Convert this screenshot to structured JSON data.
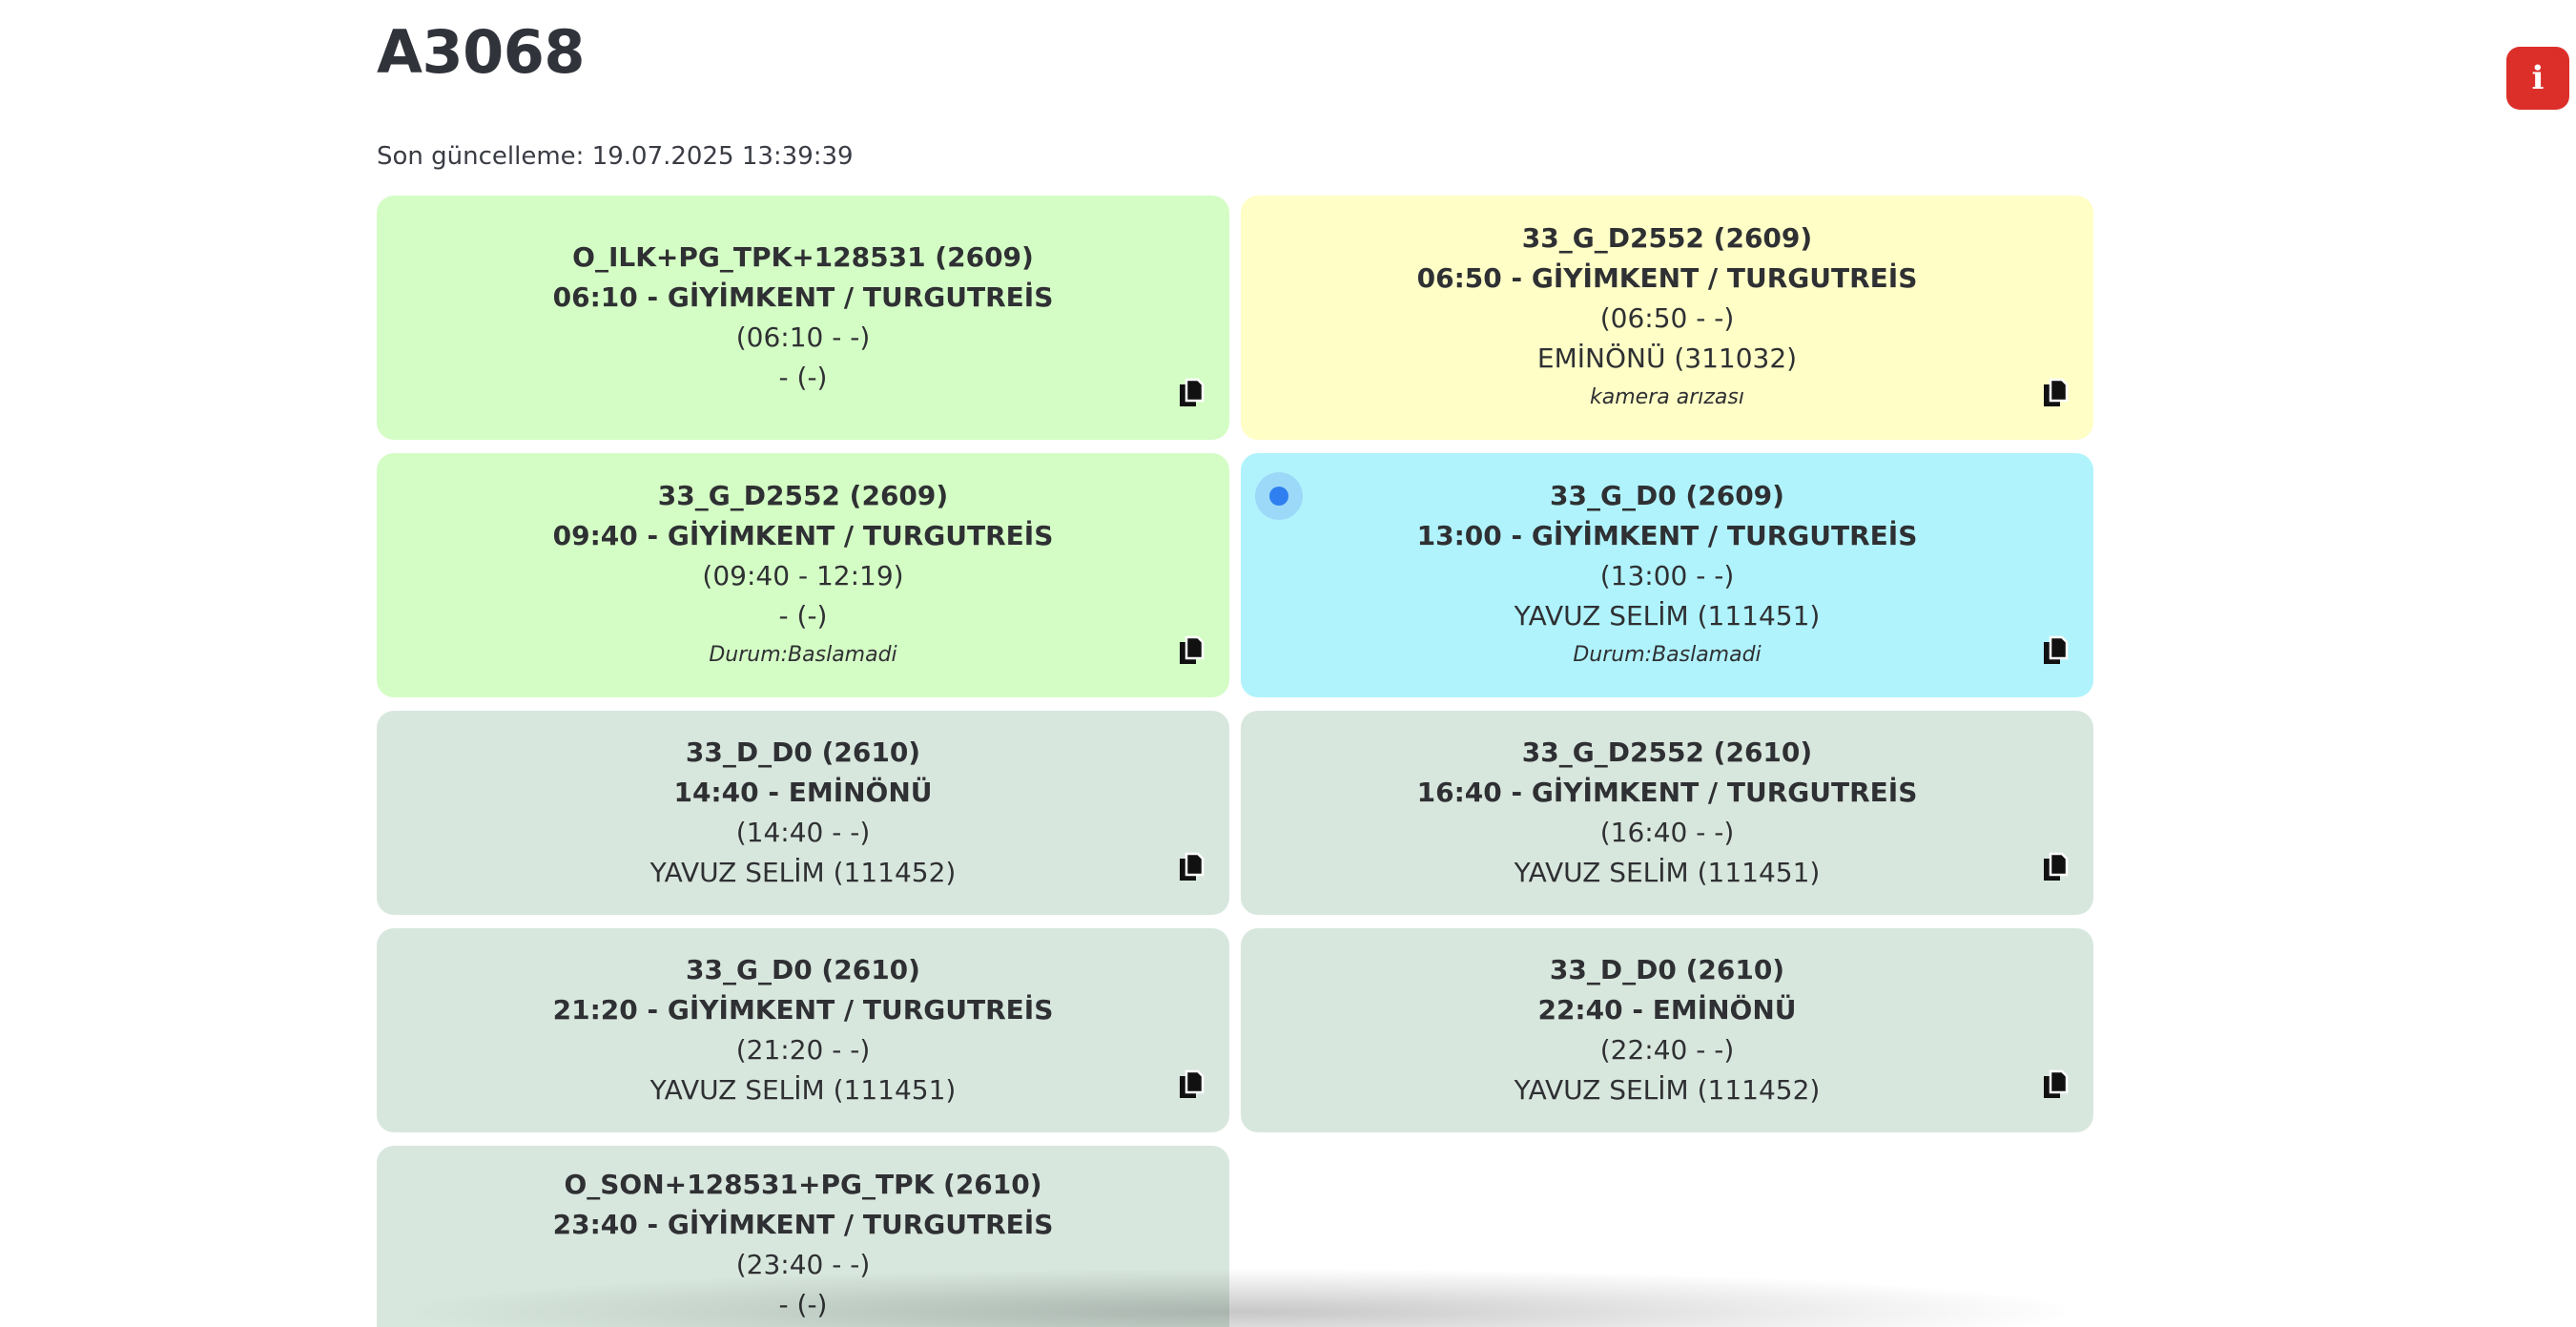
{
  "header": {
    "title": "A3068",
    "last_update": "Son güncelleme: 19.07.2025 13:39:39",
    "info_label": "i"
  },
  "cards": [
    {
      "color": "green",
      "route": "O_ILK+PG_TPK+128531 (2609)",
      "departure": "06:10 - GİYİMKENT / TURGUTREİS",
      "times": "(06:10 - -)",
      "driver": "- (-)",
      "note": ""
    },
    {
      "color": "yellow",
      "route": "33_G_D2552 (2609)",
      "departure": "06:50 - GİYİMKENT / TURGUTREİS",
      "times": "(06:50 - -)",
      "driver": "EMİNÖNÜ (311032)",
      "note": "kamera arızası"
    },
    {
      "color": "green",
      "route": "33_G_D2552 (2609)",
      "departure": "09:40 - GİYİMKENT / TURGUTREİS",
      "times": "(09:40 - 12:19)",
      "driver": "- (-)",
      "note": "Durum:Baslamadi"
    },
    {
      "color": "cyan",
      "route": "33_G_D0 (2609)",
      "departure": "13:00 - GİYİMKENT / TURGUTREİS",
      "times": "(13:00 - -)",
      "driver": "YAVUZ SELİM (111451)",
      "note": "Durum:Baslamadi"
    },
    {
      "color": "gray",
      "route": "33_D_D0 (2610)",
      "departure": "14:40 - EMİNÖNÜ",
      "times": "(14:40 - -)",
      "driver": "YAVUZ SELİM (111452)",
      "note": ""
    },
    {
      "color": "gray",
      "route": "33_G_D2552 (2610)",
      "departure": "16:40 - GİYİMKENT / TURGUTREİS",
      "times": "(16:40 - -)",
      "driver": "YAVUZ SELİM (111451)",
      "note": ""
    },
    {
      "color": "gray",
      "route": "33_G_D0 (2610)",
      "departure": "21:20 - GİYİMKENT / TURGUTREİS",
      "times": "(21:20 - -)",
      "driver": "YAVUZ SELİM (111451)",
      "note": ""
    },
    {
      "color": "gray",
      "route": "33_D_D0 (2610)",
      "departure": "22:40 - EMİNÖNÜ",
      "times": "(22:40 - -)",
      "driver": "YAVUZ SELİM (111452)",
      "note": ""
    },
    {
      "color": "gray",
      "route": "O_SON+128531+PG_TPK (2610)",
      "departure": "23:40 - GİYİMKENT / TURGUTREİS",
      "times": "(23:40 - -)",
      "driver": "- (-)",
      "note": ""
    }
  ]
}
